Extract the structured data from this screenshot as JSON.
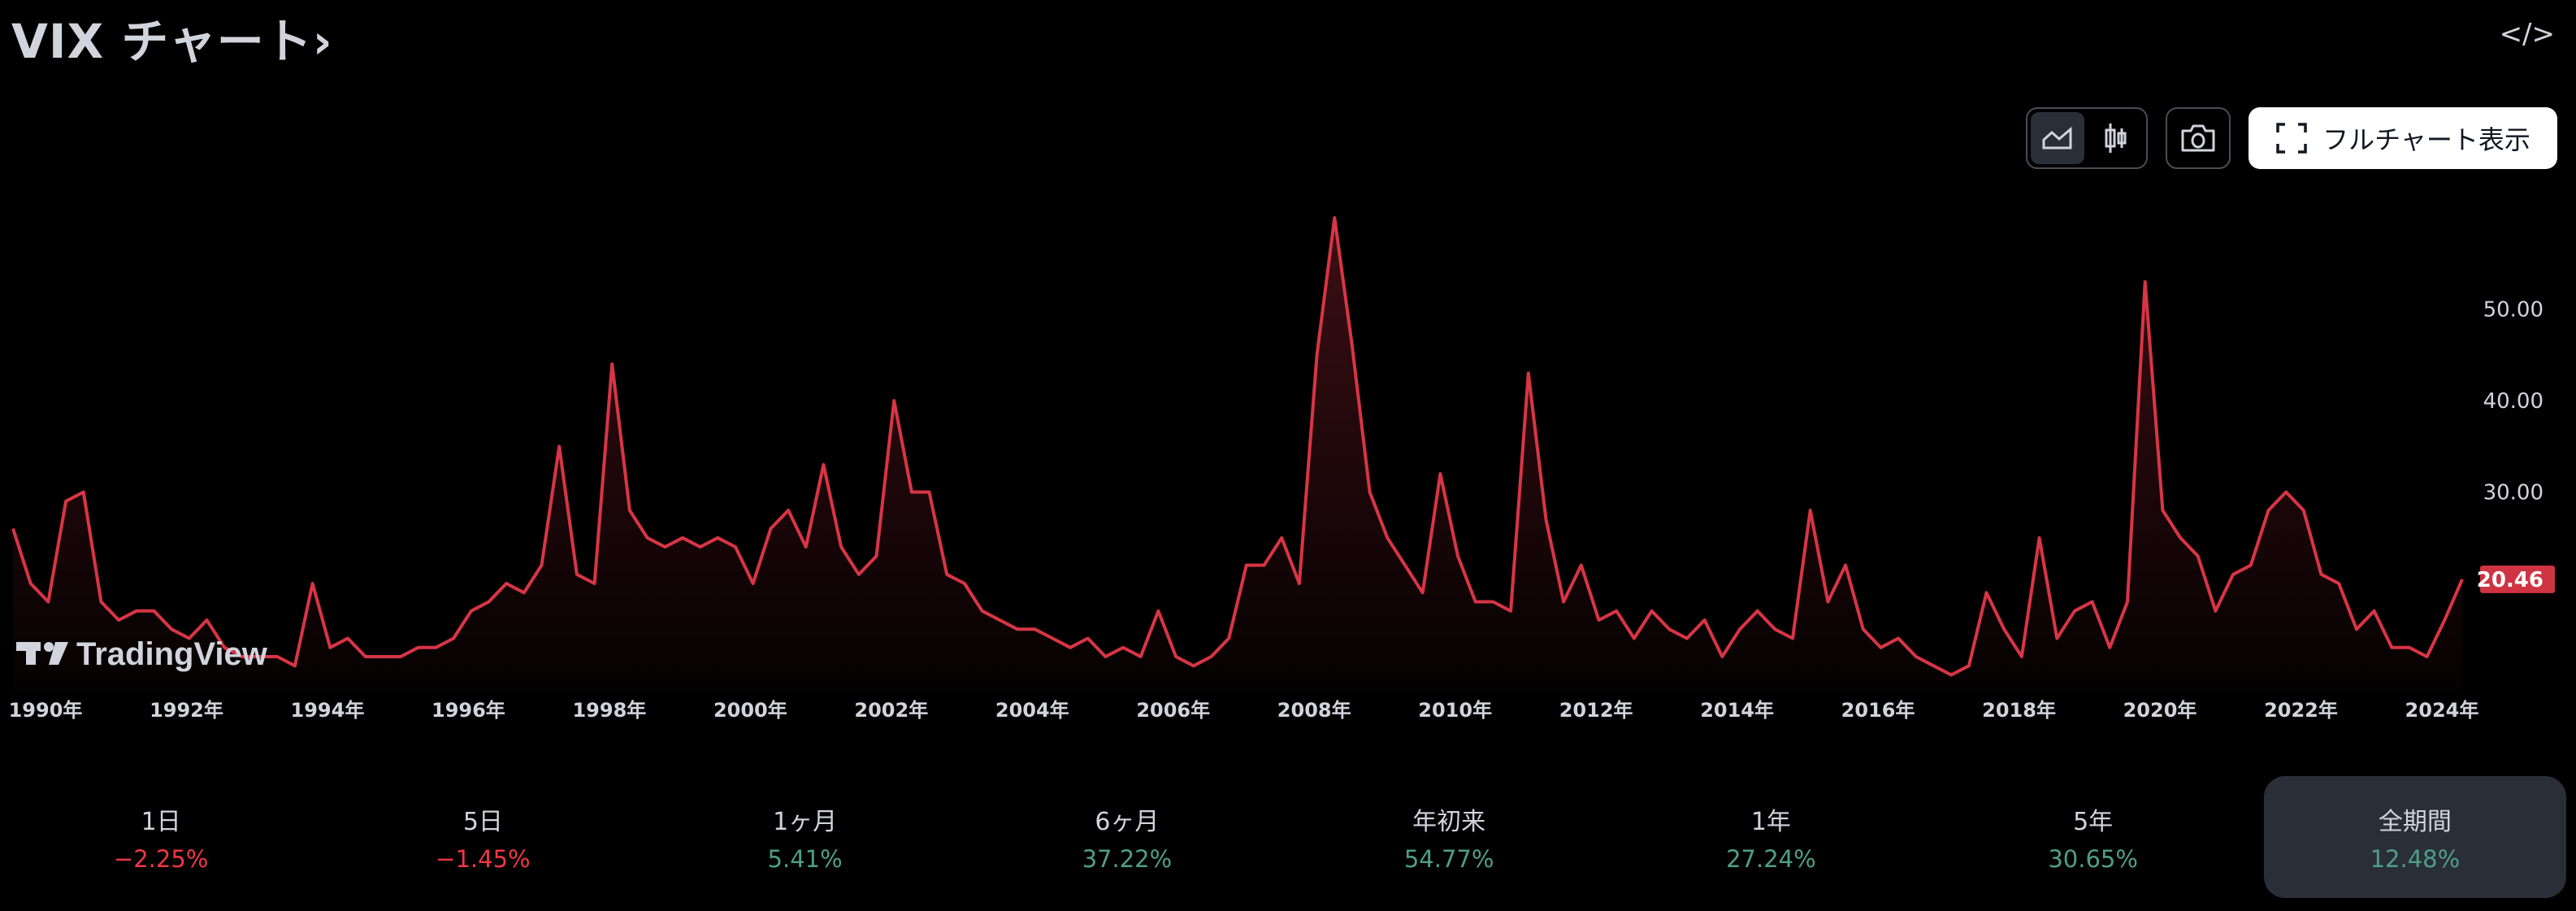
{
  "header": {
    "title": "VIX チャート›",
    "embed_icon": "code-icon"
  },
  "toolbar": {
    "line_icon": "area-chart-icon",
    "candle_icon": "candlestick-icon",
    "camera_icon": "camera-icon",
    "fullscreen_icon": "fullscreen-icon",
    "full_chart_label": "フルチャート表示"
  },
  "watermark": "TradingView",
  "colors": {
    "line": "#d83545",
    "price_label": "#cf3443",
    "positive": "#4f9f84",
    "negative": "#f23645"
  },
  "chart_data": {
    "type": "area",
    "title": "",
    "x_start": 1990,
    "x_step_years": 0.25,
    "values": [
      26,
      20,
      18,
      29,
      30,
      18,
      16,
      17,
      17,
      15,
      14,
      16,
      13,
      12,
      12,
      12,
      11,
      20,
      13,
      14,
      12,
      12,
      12,
      13,
      13,
      14,
      17,
      18,
      20,
      19,
      22,
      35,
      21,
      20,
      44,
      28,
      25,
      24,
      25,
      24,
      25,
      24,
      20,
      26,
      28,
      24,
      33,
      24,
      21,
      23,
      40,
      30,
      30,
      21,
      20,
      17,
      16,
      15,
      15,
      14,
      13,
      14,
      12,
      13,
      12,
      17,
      12,
      11,
      12,
      14,
      22,
      22,
      25,
      20,
      45,
      60,
      46,
      30,
      25,
      22,
      19,
      32,
      23,
      18,
      18,
      17,
      43,
      27,
      18,
      22,
      16,
      17,
      14,
      17,
      15,
      14,
      16,
      12,
      15,
      17,
      15,
      14,
      28,
      18,
      22,
      15,
      13,
      14,
      12,
      11,
      10,
      11,
      19,
      15,
      12,
      25,
      14,
      17,
      18,
      13,
      18,
      53,
      28,
      25,
      23,
      17,
      21,
      22,
      28,
      30,
      28,
      21,
      20,
      15,
      17,
      13,
      13,
      12,
      16,
      20.46
    ],
    "x_ticks": [
      "1990年",
      "1992年",
      "1994年",
      "1996年",
      "1998年",
      "2000年",
      "2002年",
      "2004年",
      "2006年",
      "2008年",
      "2010年",
      "2012年",
      "2014年",
      "2016年",
      "2018年",
      "2020年",
      "2022年",
      "2024年"
    ],
    "y_ticks": [
      "30.00",
      "40.00",
      "50.00"
    ],
    "y_tick_values": [
      30,
      40,
      50
    ],
    "last_value_label": "20.46",
    "grid": false
  },
  "stats": [
    {
      "label": "1日",
      "value": "−2.25%",
      "sign": "neg"
    },
    {
      "label": "5日",
      "value": "−1.45%",
      "sign": "neg"
    },
    {
      "label": "1ヶ月",
      "value": "5.41%",
      "sign": "pos"
    },
    {
      "label": "6ヶ月",
      "value": "37.22%",
      "sign": "pos"
    },
    {
      "label": "年初来",
      "value": "54.77%",
      "sign": "pos"
    },
    {
      "label": "1年",
      "value": "27.24%",
      "sign": "pos"
    },
    {
      "label": "5年",
      "value": "30.65%",
      "sign": "pos"
    },
    {
      "label": "全期間",
      "value": "12.48%",
      "sign": "pos",
      "active": true
    }
  ]
}
